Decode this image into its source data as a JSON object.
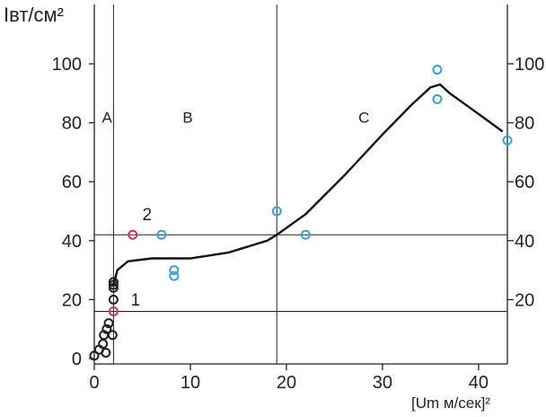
{
  "chart_data": {
    "type": "scatter",
    "ylabel": "Iвт/см²",
    "xlabel": "[Um  м/сек]²",
    "xlim": [
      0,
      43
    ],
    "ylim": [
      0,
      100
    ],
    "x_ticks": [
      "0",
      "10",
      "20",
      "30",
      "40"
    ],
    "y_ticks": [
      "0",
      "20",
      "40",
      "60",
      "80",
      "100"
    ],
    "right_y_ticks": [
      "20",
      "40",
      "60",
      "80",
      "100"
    ],
    "regions": [
      {
        "label": "A",
        "x": 0.8,
        "y": 88
      },
      {
        "label": "B",
        "x": 9.2,
        "y": 88
      },
      {
        "label": "C",
        "x": 27.5,
        "y": 88
      }
    ],
    "vertical_lines_x": [
      2,
      19
    ],
    "horizontal_lines_y": [
      16,
      42
    ],
    "annotations": [
      {
        "text": "1",
        "x": 3.8,
        "y": 18
      },
      {
        "text": "2",
        "x": 5.0,
        "y": 47
      }
    ],
    "series": [
      {
        "color": "#1f1f1f",
        "points": [
          [
            0,
            1
          ],
          [
            0.5,
            3
          ],
          [
            0.9,
            5
          ],
          [
            1.0,
            8
          ],
          [
            1.2,
            2
          ],
          [
            1.3,
            10
          ],
          [
            1.5,
            12
          ],
          [
            1.9,
            8
          ],
          [
            2.0,
            20
          ],
          [
            2.0,
            24
          ],
          [
            2.0,
            25
          ],
          [
            2.0,
            26
          ]
        ]
      },
      {
        "color": "#c0395a",
        "points": [
          [
            2,
            16
          ],
          [
            4,
            42
          ]
        ]
      },
      {
        "color": "#3fa0c8",
        "points": [
          [
            7,
            42
          ],
          [
            8.3,
            30
          ],
          [
            8.3,
            28
          ],
          [
            19,
            50
          ],
          [
            22,
            42
          ],
          [
            35.7,
            98
          ],
          [
            35.7,
            88
          ],
          [
            43,
            74
          ]
        ]
      }
    ],
    "fit_curve": [
      [
        2,
        25
      ],
      [
        2.4,
        30
      ],
      [
        3.5,
        33
      ],
      [
        6,
        34
      ],
      [
        10,
        34
      ],
      [
        14,
        36
      ],
      [
        18,
        40
      ],
      [
        19,
        42
      ],
      [
        22,
        49
      ],
      [
        26,
        62
      ],
      [
        30,
        76
      ],
      [
        33,
        86
      ],
      [
        35,
        92
      ],
      [
        36,
        93
      ],
      [
        37,
        90
      ],
      [
        40,
        83
      ],
      [
        42.5,
        77
      ]
    ],
    "grid": false
  },
  "colors": {
    "axis": "#222222",
    "curve": "#111111"
  }
}
